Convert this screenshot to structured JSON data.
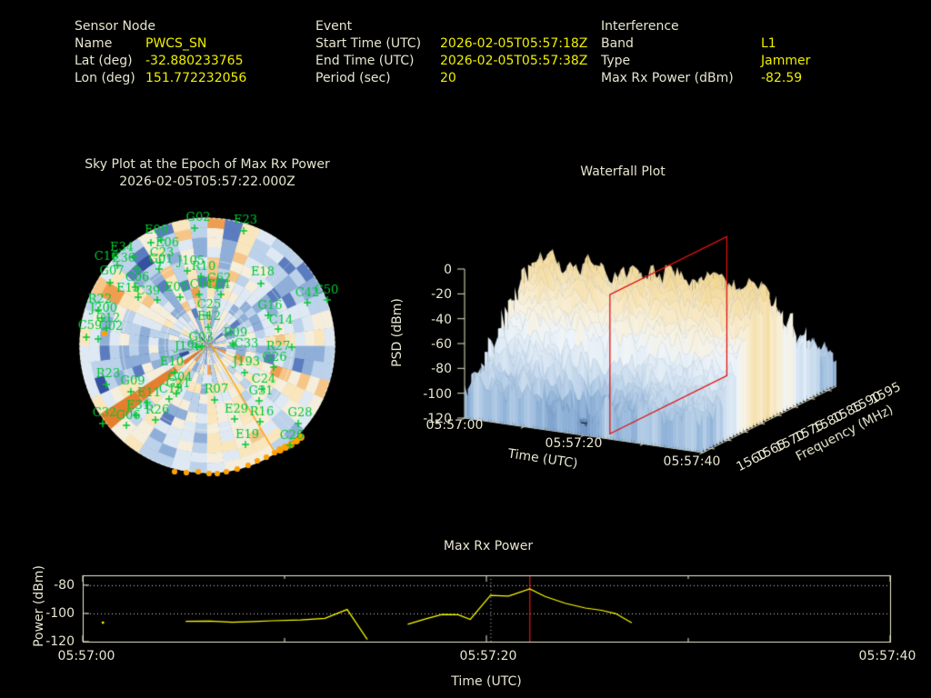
{
  "colors": {
    "background": "#000000",
    "label_cream": "#e7e5cf",
    "value_yellow": "#efef00",
    "trace_yellow": "#ffff00",
    "epoch_red": "#dd1111",
    "satellite_green": "#00c832",
    "jammer_orange": "#ffa200",
    "mosaic_palette": [
      "#34509e",
      "#5c7cc0",
      "#8fafd9",
      "#bcd2ea",
      "#dfe9f4",
      "#f5eedd",
      "#f9e6bd",
      "#f6c689",
      "#ef9e51",
      "#e57f2e"
    ],
    "surface_colormap": [
      [
        -120,
        "#6488bb"
      ],
      [
        -100,
        "#8fb2d8"
      ],
      [
        -85,
        "#bed4ea"
      ],
      [
        -70,
        "#dbe8f4"
      ],
      [
        -55,
        "#eef4f9"
      ],
      [
        -45,
        "#f7f2e3"
      ],
      [
        -33,
        "#f8ebcb"
      ],
      [
        -20,
        "#f6e0ac"
      ],
      [
        -8,
        "#f2d791"
      ]
    ]
  },
  "header": {
    "sensor": {
      "title": "Sensor Node",
      "rows": [
        {
          "label": "Name",
          "value": "PWCS_SN"
        },
        {
          "label": "Lat (deg)",
          "value": "-32.880233765"
        },
        {
          "label": "Lon (deg)",
          "value": "151.772232056"
        }
      ]
    },
    "event": {
      "title": "Event",
      "rows": [
        {
          "label": "Start Time (UTC)",
          "value": "2026-02-05T05:57:18Z"
        },
        {
          "label": "End Time (UTC)",
          "value": "2026-02-05T05:57:38Z"
        },
        {
          "label": "Period (sec)",
          "value": "20"
        }
      ]
    },
    "interference": {
      "title": "Interference",
      "rows": [
        {
          "label": "Band",
          "value": "L1"
        },
        {
          "label": "Type",
          "value": "Jammer"
        },
        {
          "label": "Max Rx Power (dBm)",
          "value": "-82.59"
        }
      ]
    }
  },
  "plots": {
    "sky": {
      "title_line1": "Sky Plot at the Epoch of Max Rx Power",
      "title_line2": "2026-02-05T05:57:22.000Z"
    },
    "waterfall": {
      "title": "Waterfall Plot",
      "xlabel": "Time (UTC)",
      "ylabel": "Frequency (MHz)",
      "zlabel": "PSD (dBm)"
    },
    "power": {
      "title": "Max Rx Power",
      "xlabel": "Time (UTC)",
      "ylabel": "Power (dBm)"
    }
  },
  "chart_data": [
    {
      "type": "heatmap",
      "subtype": "polar_sky_mosaic",
      "title": "Sky Plot at the Epoch of Max Rx Power 2026-02-05T05:57:22.000Z",
      "note": "Polar az/el mosaic of random-looking blue-to-orange tiles; green GNSS satellite labels with + markers; orange jammer bearing line from zenith to SSE horizon with orange dots along horizon arc.",
      "satellites_format": "[label, label_x, label_y, marker_x, marker_y] (screen px)",
      "satellites": [
        [
          "G02",
          218,
          238,
          214,
          251
        ],
        [
          "E23",
          270,
          241,
          268,
          254
        ],
        [
          "E09",
          172,
          252,
          177,
          264
        ],
        [
          "E06",
          184,
          266,
          166,
          267
        ],
        [
          "C23",
          178,
          277,
          176,
          289
        ],
        [
          "E34",
          134,
          271,
          147,
          283
        ],
        [
          "C16",
          117,
          281,
          129,
          292
        ],
        [
          "E36",
          136,
          283,
          151,
          295
        ],
        [
          "G01",
          177,
          284,
          175,
          296
        ],
        [
          "J105",
          210,
          286,
          206,
          298
        ],
        [
          "R10",
          224,
          292,
          221,
          304
        ],
        [
          "E18",
          289,
          298,
          287,
          312
        ],
        [
          "G07",
          123,
          297,
          121,
          311
        ],
        [
          "C06",
          151,
          304,
          149,
          316
        ],
        [
          "C62",
          241,
          305,
          239,
          317
        ],
        [
          "C04",
          240,
          312,
          243,
          324
        ],
        [
          "C01",
          222,
          312,
          219,
          324
        ],
        [
          "E05",
          194,
          315,
          198,
          327
        ],
        [
          "C39",
          163,
          319,
          173,
          330
        ],
        [
          "E15",
          141,
          316,
          152,
          327
        ],
        [
          "C42",
          338,
          321,
          338,
          333
        ],
        [
          "C50",
          359,
          318,
          360,
          330
        ],
        [
          "R22",
          110,
          328,
          108,
          341
        ],
        [
          "J200",
          114,
          338,
          112,
          350
        ],
        [
          "C12",
          119,
          349,
          117,
          361
        ],
        [
          "C25",
          230,
          334,
          228,
          347
        ],
        [
          "G16",
          297,
          335,
          295,
          347
        ],
        [
          "E12",
          230,
          347,
          229,
          360
        ],
        [
          "C14",
          309,
          351,
          306,
          362
        ],
        [
          "C59",
          99,
          357,
          95,
          371
        ],
        [
          "C02",
          122,
          358,
          108,
          373
        ],
        [
          "R09",
          259,
          365,
          256,
          378
        ],
        [
          "G03",
          221,
          370,
          217,
          382
        ],
        [
          "C33",
          271,
          377,
          257,
          380
        ],
        [
          "J196",
          207,
          380,
          222,
          381
        ],
        [
          "R27",
          306,
          380,
          321,
          382
        ],
        [
          "G26",
          302,
          392,
          301,
          404
        ],
        [
          "E10",
          189,
          397,
          192,
          410
        ],
        [
          "J193",
          271,
          397,
          269,
          410
        ],
        [
          "R23",
          119,
          410,
          117,
          423
        ],
        [
          "G09",
          146,
          418,
          144,
          431
        ],
        [
          "G04",
          198,
          414,
          196,
          426
        ],
        [
          "G21",
          196,
          421,
          194,
          433
        ],
        [
          "C24",
          290,
          416,
          288,
          428
        ],
        [
          "E11",
          164,
          431,
          162,
          443
        ],
        [
          "C13",
          188,
          427,
          186,
          439
        ],
        [
          "R07",
          238,
          427,
          236,
          440
        ],
        [
          "G31",
          287,
          429,
          285,
          441
        ],
        [
          "E31",
          152,
          445,
          150,
          457
        ],
        [
          "R26",
          173,
          450,
          171,
          462
        ],
        [
          "C32",
          115,
          453,
          113,
          466
        ],
        [
          "G06",
          141,
          456,
          139,
          468
        ],
        [
          "E29",
          260,
          449,
          258,
          461
        ],
        [
          "R16",
          288,
          452,
          286,
          464
        ],
        [
          "G28",
          330,
          453,
          328,
          466
        ],
        [
          "E19",
          272,
          477,
          270,
          489
        ],
        [
          "C26",
          321,
          478,
          319,
          490
        ]
      ],
      "jammer_track": {
        "line": [
          [
            232,
            379
          ],
          [
            303,
            499
          ]
        ],
        "dots": [
          [
            115,
            367
          ],
          [
            192,
            519
          ],
          [
            205,
            520
          ],
          [
            218,
            519
          ],
          [
            230,
            521
          ],
          [
            239,
            521
          ],
          [
            249,
            519
          ],
          [
            261,
            516
          ],
          [
            273,
            512
          ],
          [
            283,
            507
          ],
          [
            293,
            503
          ],
          [
            302,
            498
          ],
          [
            308,
            495
          ],
          [
            314,
            492
          ],
          [
            320,
            489
          ],
          [
            326,
            485
          ],
          [
            331,
            481
          ]
        ]
      }
    },
    {
      "type": "heatmap",
      "subtype": "3d_surface_waterfall",
      "title": "Waterfall Plot",
      "xlabel": "Time (UTC)",
      "x_ticks": [
        "05:57:00",
        "05:57:20",
        "05:57:40"
      ],
      "x_tick_seconds": [
        0,
        20,
        40
      ],
      "ylabel": "Frequency (MHz)",
      "y_ticks": [
        1560,
        1565,
        1570,
        1575,
        1580,
        1585,
        1590,
        1595
      ],
      "freq_range_mhz": [
        1557.5,
        1597.5
      ],
      "zlabel": "PSD (dBm)",
      "z_ticks": [
        0,
        -20,
        -40,
        -60,
        -80,
        -100,
        -120
      ],
      "zlim": [
        -120,
        0
      ],
      "surface_summary": "Noisy PSD surface: broad ridge near 1577 MHz peaking ~-20 dBm across all times, falling to ~-95 dBm noise floor at band edges, with a deep notch (~-120 dBm) near 1562 MHz around 05:57:18.",
      "epoch_slice": {
        "time": "05:57:22",
        "freq_span_mhz": [
          1560,
          1595
        ],
        "top_dbm": -8,
        "bottom_dbm": -120,
        "color": "#dd1111"
      }
    },
    {
      "type": "line",
      "title": "Max Rx Power",
      "xlabel": "Time (UTC)",
      "ylabel": "Power (dBm)",
      "x_ticks": [
        "05:57:00",
        "05:57:20",
        "05:57:40"
      ],
      "x_tick_seconds": [
        0,
        20,
        40
      ],
      "x_minor_tick_seconds": [
        10,
        30
      ],
      "ylim": [
        -120,
        -73
      ],
      "y_ticks": [
        -80,
        -100,
        -120
      ],
      "gridlines_dbm": [
        -80,
        -100
      ],
      "series_format": "[seconds_after_05:57:00, dBm]",
      "isolated_point": [
        1.0,
        -106.5
      ],
      "segment1": [
        [
          5.1,
          -105.6
        ],
        [
          6.3,
          -105.4
        ],
        [
          7.4,
          -106.3
        ],
        [
          8.5,
          -105.8
        ],
        [
          9.4,
          -105.2
        ],
        [
          10.8,
          -104.6
        ],
        [
          12.0,
          -103.5
        ],
        [
          13.1,
          -97.2
        ],
        [
          14.1,
          -118.5
        ]
      ],
      "segment2": [
        [
          16.1,
          -107.7
        ],
        [
          17.0,
          -103.8
        ],
        [
          17.8,
          -100.8
        ],
        [
          18.6,
          -100.9
        ],
        [
          19.2,
          -104.2
        ],
        [
          20.2,
          -87.3
        ],
        [
          21.1,
          -87.7
        ],
        [
          22.15,
          -82.59
        ],
        [
          22.9,
          -88.0
        ],
        [
          23.9,
          -92.8
        ],
        [
          24.9,
          -96.2
        ],
        [
          25.7,
          -97.8
        ],
        [
          26.4,
          -100.1
        ],
        [
          27.2,
          -106.6
        ]
      ],
      "event_marker_sec": 20.2,
      "epoch_marker_sec": 22.15,
      "max_value_dbm": -82.59
    }
  ]
}
